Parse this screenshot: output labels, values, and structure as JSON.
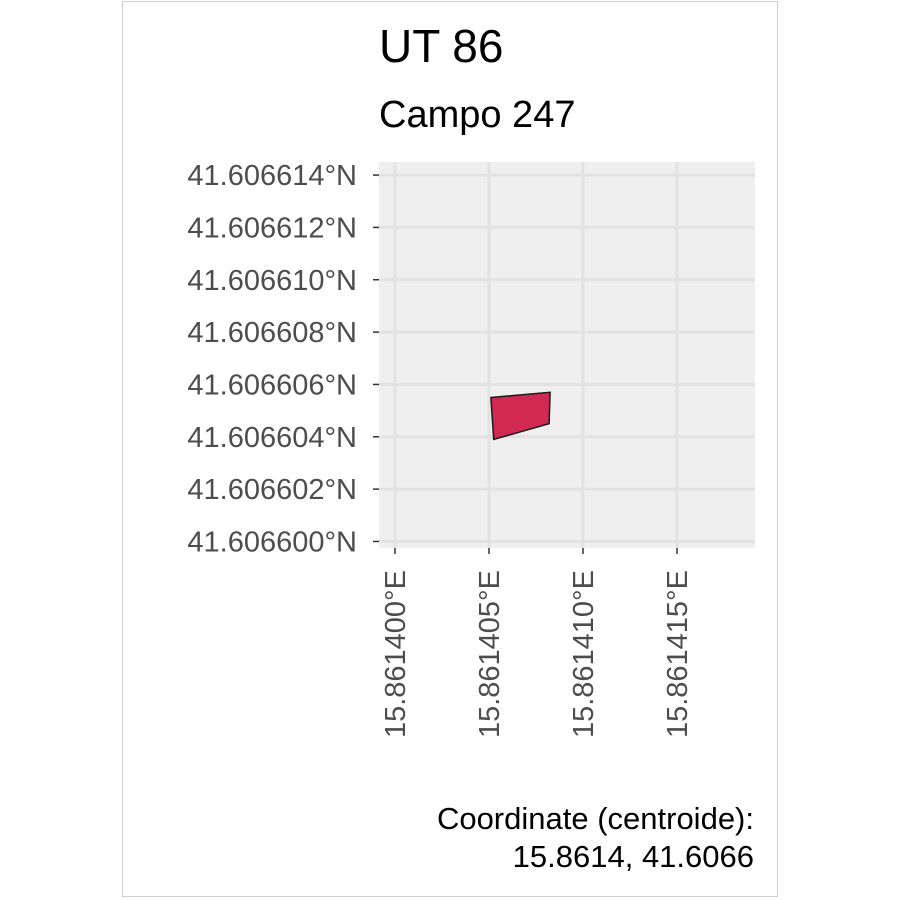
{
  "title": "UT 86",
  "subtitle": "Campo 247",
  "chart_data": {
    "type": "map",
    "x_ticks": [
      15.8614,
      15.861405,
      15.86141,
      15.861415
    ],
    "x_tick_labels": [
      "15.861400°E",
      "15.861405°E",
      "15.861410°E",
      "15.861415°E"
    ],
    "y_ticks": [
      41.6066,
      41.606602,
      41.606604,
      41.606606,
      41.606608,
      41.60661,
      41.606612,
      41.606614
    ],
    "y_tick_labels": [
      "41.606600°N",
      "41.606602°N",
      "41.606604°N",
      "41.606606°N",
      "41.606608°N",
      "41.606610°N",
      "41.606612°N",
      "41.606614°N"
    ],
    "xlim": [
      15.86139915,
      15.86141915
    ],
    "ylim": [
      41.60659975,
      41.6066145
    ],
    "polygon": {
      "name": "Campo 247",
      "coordinates": [
        [
          15.8614051,
          41.6066055
        ],
        [
          15.86140825,
          41.6066057
        ],
        [
          15.8614082,
          41.6066045
        ],
        [
          15.86140525,
          41.6066039
        ]
      ],
      "fill": "#d12a52",
      "stroke": "#1a1a1a"
    },
    "panel_background": "#efefef",
    "grid": true,
    "grid_color": "#e2e2e2"
  },
  "caption": {
    "line1": "Coordinate (centroide):",
    "line2": "15.8614, 41.6066"
  }
}
